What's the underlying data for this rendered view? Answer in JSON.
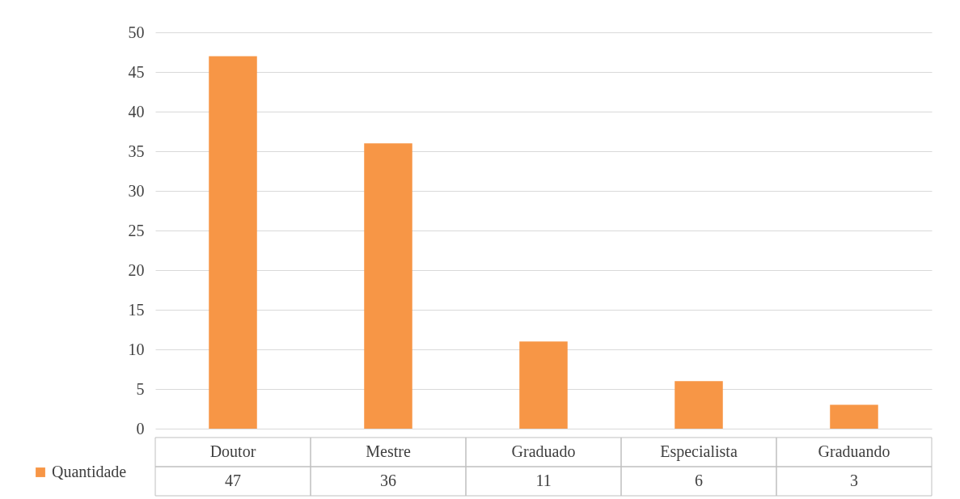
{
  "chart_data": {
    "type": "bar",
    "categories": [
      "Doutor",
      "Mestre",
      "Graduado",
      "Especialista",
      "Graduando"
    ],
    "series": [
      {
        "name": "Quantidade",
        "color": "#f79646",
        "values": [
          47,
          36,
          11,
          6,
          3
        ]
      }
    ],
    "ylim": [
      0,
      50
    ],
    "yticks": [
      0,
      5,
      10,
      15,
      20,
      25,
      30,
      35,
      40,
      45,
      50
    ],
    "grid": "y",
    "legend": "bottom",
    "data_labels": true
  }
}
